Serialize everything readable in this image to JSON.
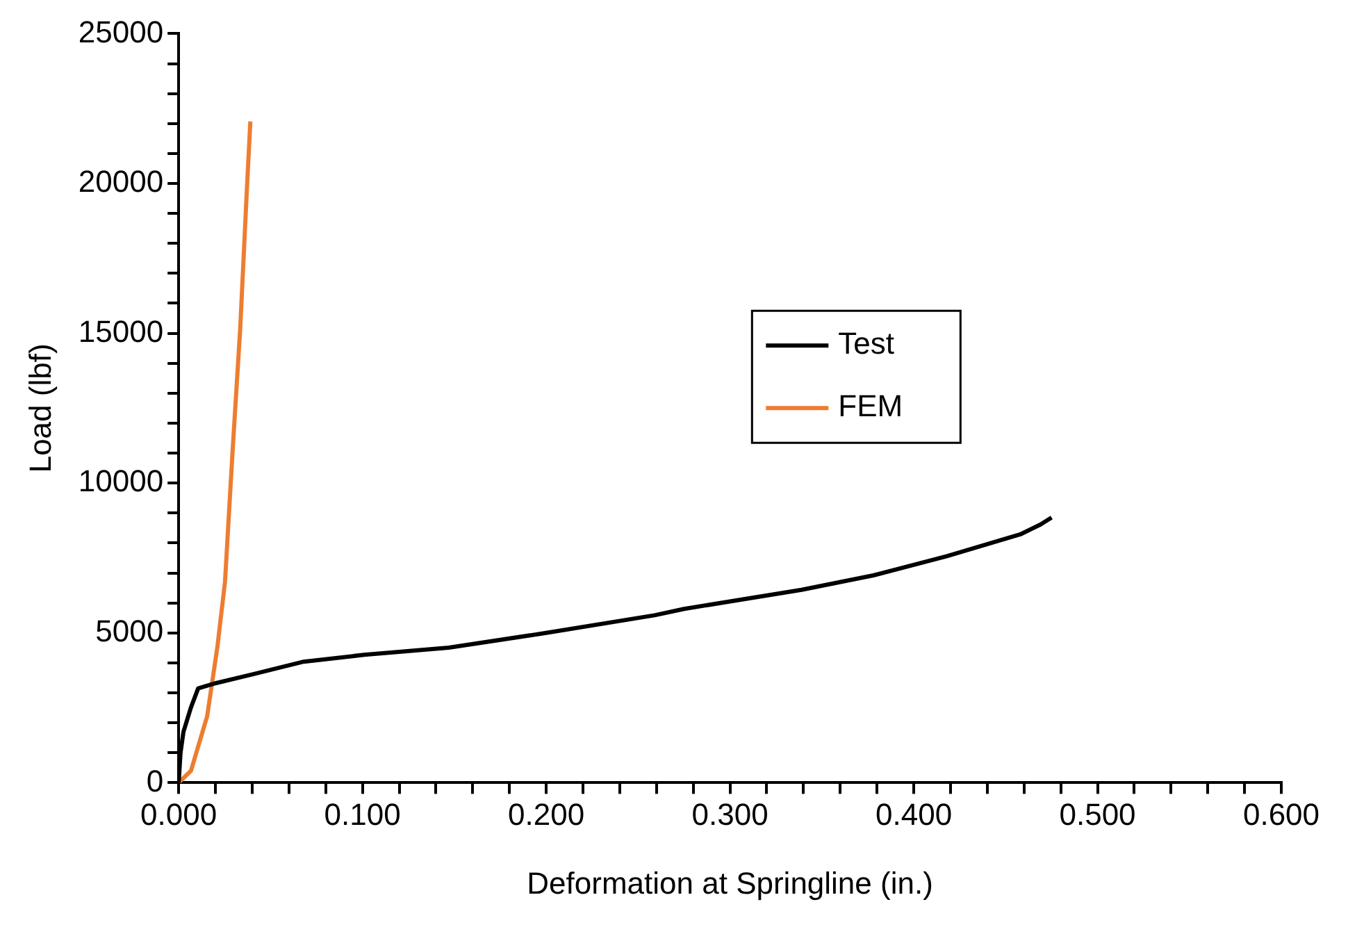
{
  "chart_data": {
    "type": "line",
    "xlabel": "Deformation at Springline (in.)",
    "ylabel": "Load (lbf)",
    "xlim": [
      0,
      0.6
    ],
    "ylim": [
      0,
      25000
    ],
    "xticks": [
      {
        "value": 0,
        "label": "0.000"
      },
      {
        "value": 0.02,
        "label": null
      },
      {
        "value": 0.04,
        "label": null
      },
      {
        "value": 0.06,
        "label": null
      },
      {
        "value": 0.08,
        "label": null
      },
      {
        "value": 0.1,
        "label": "0.100"
      },
      {
        "value": 0.12,
        "label": null
      },
      {
        "value": 0.14,
        "label": null
      },
      {
        "value": 0.16,
        "label": null
      },
      {
        "value": 0.18,
        "label": null
      },
      {
        "value": 0.2,
        "label": "0.200"
      },
      {
        "value": 0.22,
        "label": null
      },
      {
        "value": 0.24,
        "label": null
      },
      {
        "value": 0.26,
        "label": null
      },
      {
        "value": 0.28,
        "label": null
      },
      {
        "value": 0.3,
        "label": "0.300"
      },
      {
        "value": 0.32,
        "label": null
      },
      {
        "value": 0.34,
        "label": null
      },
      {
        "value": 0.36,
        "label": null
      },
      {
        "value": 0.38,
        "label": null
      },
      {
        "value": 0.4,
        "label": "0.400"
      },
      {
        "value": 0.42,
        "label": null
      },
      {
        "value": 0.44,
        "label": null
      },
      {
        "value": 0.46,
        "label": null
      },
      {
        "value": 0.48,
        "label": null
      },
      {
        "value": 0.5,
        "label": "0.500"
      },
      {
        "value": 0.52,
        "label": null
      },
      {
        "value": 0.54,
        "label": null
      },
      {
        "value": 0.56,
        "label": null
      },
      {
        "value": 0.58,
        "label": null
      },
      {
        "value": 0.6,
        "label": "0.600"
      }
    ],
    "yticks": [
      0,
      {
        "value": 1000,
        "label": null
      },
      {
        "value": 2000,
        "label": null
      },
      {
        "value": 3000,
        "label": null
      },
      {
        "value": 4000,
        "label": null
      },
      5000,
      {
        "value": 6000,
        "label": null
      },
      {
        "value": 7000,
        "label": null
      },
      {
        "value": 8000,
        "label": null
      },
      {
        "value": 9000,
        "label": null
      },
      10000,
      {
        "value": 11000,
        "label": null
      },
      {
        "value": 12000,
        "label": null
      },
      {
        "value": 13000,
        "label": null
      },
      {
        "value": 14000,
        "label": null
      },
      15000,
      {
        "value": 16000,
        "label": null
      },
      {
        "value": 17000,
        "label": null
      },
      {
        "value": 18000,
        "label": null
      },
      {
        "value": 19000,
        "label": null
      },
      20000,
      {
        "value": 21000,
        "label": null
      },
      {
        "value": 22000,
        "label": null
      },
      {
        "value": 23000,
        "label": null
      },
      {
        "value": 24000,
        "label": null
      },
      25000
    ],
    "grid": false,
    "legend": "center",
    "marker": "none",
    "line_style": "solid",
    "series": [
      {
        "name": "Test",
        "color": "#000000",
        "x": [
          0,
          0.001,
          0.0026,
          0.0066,
          0.0106,
          0.02,
          0.041,
          0.068,
          0.101,
          0.147,
          0.2,
          0.259,
          0.275,
          0.339,
          0.378,
          0.418,
          0.458,
          0.469,
          0.475
        ],
        "values": [
          0,
          1000,
          1700,
          2500,
          3150,
          3320,
          3630,
          4040,
          4270,
          4510,
          5000,
          5590,
          5800,
          6440,
          6920,
          7560,
          8290,
          8620,
          8850
        ]
      },
      {
        "name": "FEM",
        "color": "#ed7d31",
        "x": [
          0,
          0.0067,
          0.0155,
          0.0211,
          0.0252,
          0.0293,
          0.0335,
          0.037,
          0.039
        ],
        "values": [
          0,
          400,
          2220,
          4550,
          6700,
          11030,
          15180,
          19660,
          22070
        ]
      }
    ]
  }
}
